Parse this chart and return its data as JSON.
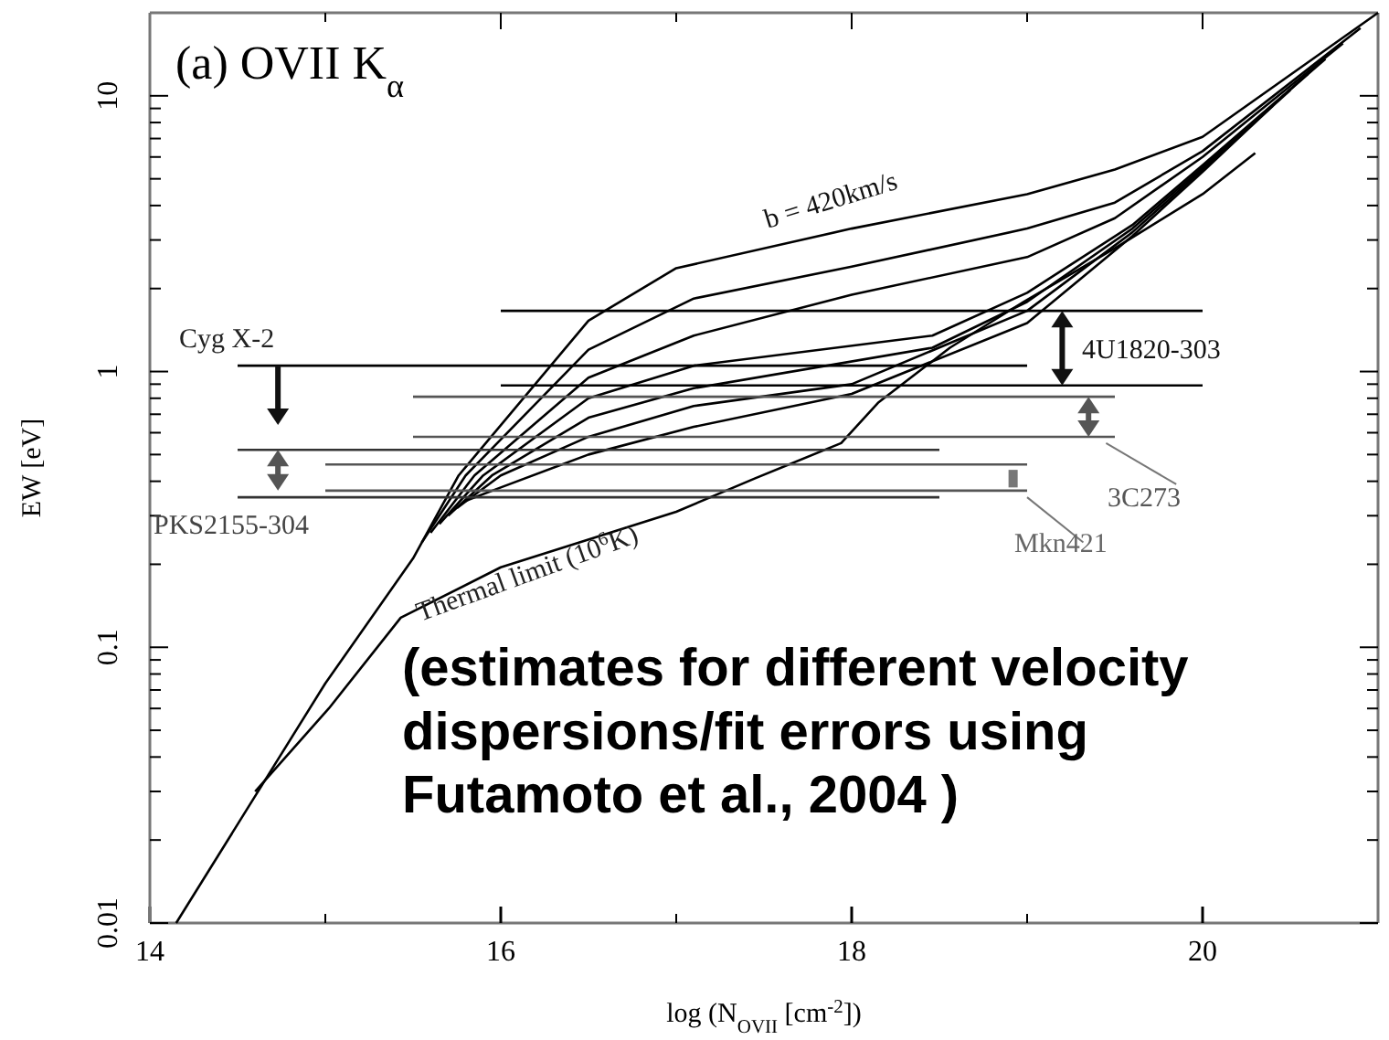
{
  "chart_data": {
    "type": "line",
    "title": "(a) OVII K$_{α}$",
    "xlabel": "log (N$_{OVII}$ [cm$^{-2}$])",
    "ylabel": "EW [eV]",
    "log": "y",
    "marker": "none",
    "line_style": "solid",
    "grid": false,
    "xlim": [
      14,
      21
    ],
    "ylim": [
      0.01,
      20
    ],
    "xticks": [
      14,
      {
        "value": 15,
        "label": null
      },
      16,
      {
        "value": 17,
        "label": null
      },
      18,
      {
        "value": 19,
        "label": null
      },
      20
    ],
    "yticks": [
      0.01,
      {
        "value": 0.02,
        "label": null
      },
      {
        "value": 0.03,
        "label": null
      },
      {
        "value": 0.04,
        "label": null
      },
      {
        "value": 0.05,
        "label": null
      },
      {
        "value": 0.06,
        "label": null
      },
      {
        "value": 0.07,
        "label": null
      },
      {
        "value": 0.08,
        "label": null
      },
      {
        "value": 0.09,
        "label": null
      },
      0.1,
      {
        "value": 0.2,
        "label": null
      },
      {
        "value": 0.3,
        "label": null
      },
      {
        "value": 0.4,
        "label": null
      },
      {
        "value": 0.5,
        "label": null
      },
      {
        "value": 0.6,
        "label": null
      },
      {
        "value": 0.7,
        "label": null
      },
      {
        "value": 0.8,
        "label": null
      },
      {
        "value": 0.9,
        "label": null
      },
      1,
      {
        "value": 2,
        "label": null
      },
      {
        "value": 3,
        "label": null
      },
      {
        "value": 4,
        "label": null
      },
      {
        "value": 5,
        "label": null
      },
      {
        "value": 6,
        "label": null
      },
      {
        "value": 7,
        "label": null
      },
      {
        "value": 8,
        "label": null
      },
      {
        "value": 9,
        "label": null
      },
      10
    ],
    "series": [
      {
        "color": "#000000",
        "x": [
          14.15,
          15,
          15.5,
          15.76,
          16.5,
          17,
          18,
          19,
          19.5,
          20,
          21
        ],
        "values": [
          0.01,
          0.074,
          0.21,
          0.42,
          1.53,
          2.37,
          3.3,
          4.4,
          5.4,
          7.1,
          20
        ]
      },
      {
        "color": "#000000",
        "x": [
          15.55,
          15.8,
          16.5,
          17.1,
          18,
          19,
          19.5,
          20,
          20.9
        ],
        "values": [
          0.24,
          0.42,
          1.2,
          1.84,
          2.4,
          3.3,
          4.1,
          6.3,
          17.6
        ]
      },
      {
        "color": "#000000",
        "x": [
          15.6,
          15.85,
          16.5,
          17.1,
          18,
          19,
          19.5,
          20,
          20.8
        ],
        "values": [
          0.26,
          0.42,
          0.95,
          1.35,
          1.9,
          2.6,
          3.6,
          6.0,
          15.5
        ]
      },
      {
        "color": "#000000",
        "x": [
          15.65,
          15.9,
          16.5,
          17.1,
          18.46,
          19,
          19.6,
          20,
          20.7
        ],
        "values": [
          0.28,
          0.42,
          0.8,
          1.05,
          1.35,
          1.93,
          3.4,
          5.6,
          13.6
        ]
      },
      {
        "color": "#000000",
        "x": [
          15.7,
          15.95,
          16.5,
          17.1,
          18.46,
          19,
          19.6,
          20,
          20.6
        ],
        "values": [
          0.3,
          0.42,
          0.68,
          0.87,
          1.22,
          1.79,
          3.3,
          5.5,
          12
        ]
      },
      {
        "color": "#000000",
        "x": [
          15.75,
          16,
          16.5,
          17.1,
          18,
          19,
          19.6,
          20,
          20.5
        ],
        "values": [
          0.32,
          0.42,
          0.58,
          0.75,
          0.9,
          1.66,
          3.2,
          5.4,
          10.5
        ]
      },
      {
        "color": "#000000",
        "x": [
          15.8,
          16,
          16.5,
          17.1,
          18,
          19,
          19.6,
          20,
          20.4
        ],
        "values": [
          0.34,
          0.38,
          0.5,
          0.63,
          0.83,
          1.5,
          3.1,
          5.3,
          9.2
        ]
      },
      {
        "color": "#000000",
        "x": [
          14.6,
          15.02,
          15.43,
          16,
          17,
          17.45,
          17.94,
          18.15,
          18.56,
          18.98,
          19.5,
          20,
          20.3
        ],
        "values": [
          0.03,
          0.06,
          0.128,
          0.195,
          0.31,
          0.41,
          0.55,
          0.77,
          1.22,
          1.79,
          2.8,
          4.4,
          6.2
        ]
      },
      {
        "color": "#000000",
        "x": [
          16,
          20
        ],
        "values": [
          1.66,
          1.66
        ]
      },
      {
        "color": "#000000",
        "x": [
          14.5,
          19
        ],
        "values": [
          1.05,
          1.05
        ]
      },
      {
        "color": "#000000",
        "x": [
          16,
          20
        ],
        "values": [
          0.89,
          0.89
        ]
      },
      {
        "color": "#555555",
        "x": [
          15.5,
          19.5
        ],
        "values": [
          0.81,
          0.81
        ]
      },
      {
        "color": "#555555",
        "x": [
          15.5,
          19.5
        ],
        "values": [
          0.58,
          0.58
        ]
      },
      {
        "color": "#333333",
        "x": [
          14.5,
          18.5
        ],
        "values": [
          0.52,
          0.52
        ]
      },
      {
        "color": "#555555",
        "x": [
          15,
          19
        ],
        "values": [
          0.46,
          0.46
        ]
      },
      {
        "color": "#555555",
        "x": [
          15,
          19
        ],
        "values": [
          0.37,
          0.37
        ]
      },
      {
        "color": "#333333",
        "x": [
          14.5,
          18.5
        ],
        "values": [
          0.35,
          0.35
        ]
      }
    ],
    "annotations": [
      "b = 420km/s",
      "Thermal limit (10$^{6}$K)",
      "Cyg X-2",
      "PKS2155-304",
      "4U1820-303",
      "3C273",
      "Mkn421",
      "(estimates for different velocity dispersions/fit errors using Futamoto et al., 2004 )"
    ]
  }
}
